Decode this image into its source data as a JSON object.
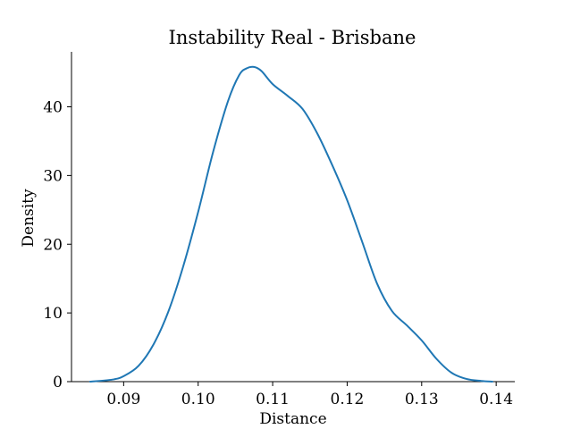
{
  "chart_data": {
    "type": "line",
    "title": "Instability Real - Brisbane",
    "xlabel": "Distance",
    "ylabel": "Density",
    "xlim": [
      0.083,
      0.1425
    ],
    "ylim": [
      0,
      48
    ],
    "x_ticks": [
      0.09,
      0.1,
      0.11,
      0.12,
      0.13,
      0.14
    ],
    "x_tick_labels": [
      "0.09",
      "0.10",
      "0.11",
      "0.12",
      "0.13",
      "0.14"
    ],
    "y_ticks": [
      0,
      10,
      20,
      30,
      40
    ],
    "y_tick_labels": [
      "0",
      "10",
      "20",
      "30",
      "40"
    ],
    "grid": false,
    "legend": "none",
    "series": [
      {
        "color": "#1f77b4",
        "x": [
          0.0855,
          0.0885,
          0.09,
          0.092,
          0.094,
          0.096,
          0.098,
          0.1,
          0.102,
          0.104,
          0.1055,
          0.1065,
          0.1075,
          0.1085,
          0.11,
          0.112,
          0.114,
          0.116,
          0.118,
          0.12,
          0.122,
          0.124,
          0.126,
          0.128,
          0.13,
          0.132,
          0.134,
          0.136,
          0.138,
          0.1395
        ],
        "y": [
          0.0,
          0.3,
          0.8,
          2.3,
          5.4,
          10.2,
          16.8,
          24.7,
          33.4,
          40.8,
          44.6,
          45.6,
          45.8,
          45.2,
          43.3,
          41.6,
          39.7,
          36.1,
          31.5,
          26.4,
          20.4,
          14.3,
          10.3,
          8.2,
          6.0,
          3.3,
          1.3,
          0.4,
          0.1,
          0.0
        ]
      }
    ]
  }
}
